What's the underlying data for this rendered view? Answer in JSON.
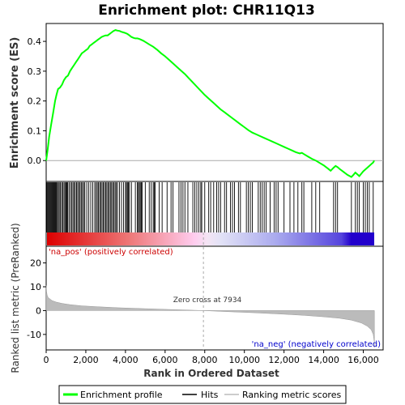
{
  "chart_data": {
    "type": "line",
    "title": "Enrichment plot: CHR11Q13",
    "top_panel": {
      "ylabel": "Enrichment score (ES)",
      "ylim": [
        -0.07,
        0.46
      ],
      "yticks": [
        0.0,
        0.1,
        0.2,
        0.3,
        0.4
      ],
      "ytick_labels": [
        "0.0",
        "0.1",
        "0.2",
        "0.3",
        "0.4"
      ],
      "series_name": "Enrichment profile",
      "color": "#00ff00",
      "x": [
        0,
        80,
        150,
        250,
        350,
        450,
        520,
        600,
        700,
        800,
        900,
        1000,
        1100,
        1200,
        1300,
        1400,
        1500,
        1600,
        1700,
        1800,
        1900,
        2000,
        2100,
        2200,
        2300,
        2400,
        2500,
        2600,
        2700,
        2800,
        2900,
        3000,
        3100,
        3200,
        3300,
        3400,
        3500,
        3600,
        3700,
        3800,
        3900,
        4000,
        4100,
        4200,
        4300,
        4400,
        4500,
        4600,
        4700,
        4800,
        4900,
        5000,
        5200,
        5400,
        5600,
        5800,
        6000,
        6200,
        6400,
        6600,
        6800,
        7000,
        7200,
        7400,
        7600,
        7800,
        8000,
        8200,
        8400,
        8600,
        8800,
        9000,
        9200,
        9400,
        9600,
        9800,
        10000,
        10200,
        10400,
        10600,
        10800,
        11000,
        11200,
        11400,
        11600,
        11800,
        12000,
        12200,
        12400,
        12600,
        12800,
        12900,
        13000,
        13200,
        13400,
        13600,
        13800,
        14000,
        14200,
        14350,
        14500,
        14600,
        14700,
        14800,
        15000,
        15200,
        15400,
        15500,
        15600,
        15700,
        15800,
        15900,
        16000,
        16100,
        16200,
        16300,
        16400,
        16500,
        16550
      ],
      "y": [
        0.0,
        0.04,
        0.08,
        0.12,
        0.16,
        0.2,
        0.22,
        0.24,
        0.245,
        0.255,
        0.27,
        0.28,
        0.285,
        0.3,
        0.31,
        0.32,
        0.33,
        0.34,
        0.35,
        0.36,
        0.365,
        0.37,
        0.375,
        0.385,
        0.39,
        0.395,
        0.4,
        0.405,
        0.41,
        0.415,
        0.418,
        0.42,
        0.42,
        0.425,
        0.43,
        0.435,
        0.438,
        0.436,
        0.435,
        0.432,
        0.43,
        0.428,
        0.425,
        0.42,
        0.415,
        0.412,
        0.41,
        0.41,
        0.408,
        0.405,
        0.402,
        0.398,
        0.39,
        0.382,
        0.372,
        0.36,
        0.35,
        0.338,
        0.326,
        0.314,
        0.302,
        0.29,
        0.276,
        0.262,
        0.248,
        0.234,
        0.22,
        0.208,
        0.196,
        0.184,
        0.172,
        0.162,
        0.152,
        0.142,
        0.132,
        0.122,
        0.112,
        0.102,
        0.094,
        0.088,
        0.082,
        0.076,
        0.07,
        0.064,
        0.058,
        0.052,
        0.046,
        0.04,
        0.034,
        0.028,
        0.024,
        0.026,
        0.022,
        0.014,
        0.006,
        0.0,
        -0.008,
        -0.016,
        -0.026,
        -0.034,
        -0.024,
        -0.018,
        -0.022,
        -0.028,
        -0.038,
        -0.048,
        -0.055,
        -0.048,
        -0.04,
        -0.046,
        -0.052,
        -0.044,
        -0.036,
        -0.03,
        -0.024,
        -0.018,
        -0.012,
        -0.006,
        0.0
      ],
      "background_color": "#ffffff",
      "zero_line_color": "#aaaaaa"
    },
    "hits_panel": {
      "series_name": "Hits",
      "hit_positions": [
        30,
        70,
        110,
        150,
        190,
        230,
        270,
        310,
        350,
        390,
        430,
        470,
        510,
        560,
        610,
        660,
        720,
        780,
        840,
        900,
        950,
        1000,
        1040,
        1080,
        1150,
        1220,
        1290,
        1350,
        1410,
        1470,
        1530,
        1590,
        1650,
        1710,
        1770,
        1830,
        1890,
        1950,
        2050,
        2150,
        2250,
        2350,
        2450,
        2520,
        2580,
        2640,
        2700,
        2760,
        2820,
        2880,
        2940,
        3000,
        3060,
        3120,
        3180,
        3240,
        3300,
        3360,
        3420,
        3480,
        3540,
        3600,
        3700,
        3800,
        3900,
        4000,
        4050,
        4100,
        4150,
        4200,
        4300,
        4500,
        4600,
        4650,
        4700,
        4750,
        4800,
        4850,
        5000,
        5200,
        5300,
        5400,
        5450,
        5500,
        5700,
        5850,
        6100,
        6300,
        6400,
        6700,
        6800,
        6900,
        7000,
        7150,
        7400,
        7500,
        7600,
        7700,
        7800,
        7850,
        8000,
        8200,
        8300,
        8450,
        8600,
        8700,
        8800,
        9000,
        9100,
        9300,
        9400,
        9500,
        9700,
        9800,
        10100,
        10200,
        10300,
        10400,
        10700,
        10800,
        10900,
        11000,
        11100,
        11300,
        11500,
        11600,
        11700,
        12000,
        12300,
        12500,
        12700,
        12900,
        13000,
        13400,
        13600,
        13800,
        14500,
        14600,
        14700,
        15400,
        15600,
        15700,
        15800,
        16000,
        16100,
        16200,
        16300,
        16500
      ]
    },
    "metric_panel": {
      "ylabel": "Ranked list metric (PreRanked)",
      "series_name": "Ranking metric scores",
      "ylim": [
        -16.5,
        27
      ],
      "yticks": [
        20,
        10,
        0,
        -10
      ],
      "ytick_labels": [
        "20",
        "10",
        "0",
        "-10"
      ],
      "profile_x": [
        0,
        20,
        50,
        100,
        200,
        300,
        500,
        800,
        1200,
        1800,
        2600,
        3600,
        5000,
        6500,
        7934,
        9000,
        10500,
        12000,
        13000,
        14000,
        14800,
        15400,
        15900,
        16200,
        16400,
        16500,
        16550,
        16560
      ],
      "profile_y": [
        10.5,
        8.0,
        6.5,
        5.5,
        4.8,
        4.2,
        3.6,
        3.0,
        2.5,
        2.0,
        1.6,
        1.2,
        0.8,
        0.4,
        0.0,
        -0.4,
        -0.9,
        -1.5,
        -2.0,
        -2.6,
        -3.2,
        -4.0,
        -5.2,
        -6.5,
        -8.0,
        -10.0,
        -13.0,
        -15.5
      ],
      "fill_color": "#bbbbbb",
      "zero_cross_value": 7934,
      "zero_cross_label": "Zero cross at 7934",
      "pos_label": "'na_pos' (positively correlated)",
      "neg_label": "'na_neg' (negatively correlated)",
      "pos_label_color": "#cc0000",
      "neg_label_color": "#0000cc"
    },
    "xaxis": {
      "label": "Rank in Ordered Dataset",
      "xlim": [
        0,
        17000
      ],
      "ticks": [
        0,
        2000,
        4000,
        6000,
        8000,
        10000,
        12000,
        14000,
        16000
      ],
      "tick_labels": [
        "0",
        "2,000",
        "4,000",
        "6,000",
        "8,000",
        "10,000",
        "12,000",
        "14,000",
        "16,000"
      ],
      "max_rank": 16550
    },
    "legend": {
      "placement": "bottom",
      "entries": [
        {
          "name": "Enrichment profile",
          "color": "#00ff00"
        },
        {
          "name": "Hits",
          "color": "#000000"
        },
        {
          "name": "Ranking metric scores",
          "color": "#bbbbbb"
        }
      ]
    }
  }
}
